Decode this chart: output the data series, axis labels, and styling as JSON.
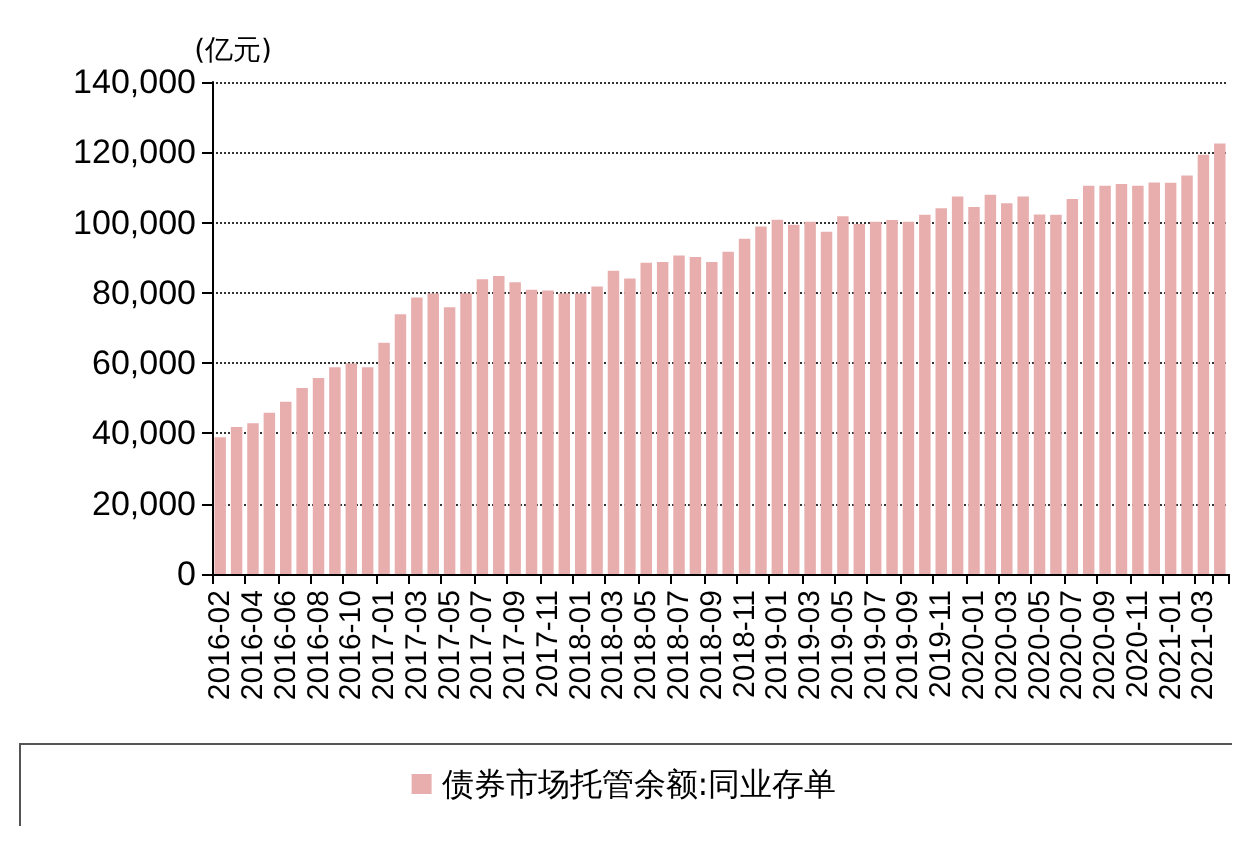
{
  "chart_data": {
    "type": "bar",
    "ylabel": "(亿元)",
    "categories": [
      "2016-02",
      null,
      "2016-04",
      null,
      "2016-06",
      null,
      "2016-08",
      null,
      "2016-10",
      null,
      "2017-01",
      null,
      "2017-03",
      null,
      "2017-05",
      null,
      "2017-07",
      null,
      "2017-09",
      null,
      "2017-11",
      null,
      "2018-01",
      null,
      "2018-03",
      null,
      "2018-05",
      null,
      "2018-07",
      null,
      "2018-09",
      null,
      "2018-11",
      null,
      "2019-01",
      null,
      "2019-03",
      null,
      "2019-05",
      null,
      "2019-07",
      null,
      "2019-09",
      null,
      "2019-11",
      null,
      "2020-01",
      null,
      "2020-03",
      null,
      "2020-05",
      null,
      "2020-07",
      null,
      "2020-09",
      null,
      "2020-11",
      null,
      "2021-01",
      null,
      "2021-03",
      null
    ],
    "series": [
      {
        "name": "债券市场托管余额:同业存单",
        "color": "#e8aeae",
        "values": [
          38900,
          41800,
          42900,
          45900,
          49000,
          52900,
          55800,
          58800,
          59900,
          58800,
          65800,
          73900,
          78700,
          79800,
          75900,
          79800,
          83900,
          84800,
          83000,
          80900,
          80700,
          79800,
          79800,
          81800,
          86300,
          84100,
          88600,
          88800,
          90600,
          90200,
          88800,
          91700,
          95400,
          98900,
          100800,
          99400,
          100200,
          97400,
          101800,
          99600,
          100200,
          100700,
          100200,
          102200,
          104100,
          107400,
          104400,
          107900,
          105500,
          107400,
          102300,
          102200,
          106700,
          110500,
          110500,
          111000,
          110500,
          111400,
          111300,
          113400,
          119300,
          122500
        ]
      }
    ],
    "ylim": [
      0,
      140000
    ],
    "yticks": [
      0,
      {
        "value": 20000,
        "label": "20,000"
      },
      {
        "value": 40000,
        "label": "40,000"
      },
      {
        "value": 60000,
        "label": "60,000"
      },
      {
        "value": 80000,
        "label": "80,000"
      },
      {
        "value": 100000,
        "label": "100,000"
      },
      {
        "value": 120000,
        "label": "120,000"
      },
      {
        "value": 140000,
        "label": "140,000"
      }
    ],
    "grid": "y",
    "legend": "bottom"
  }
}
